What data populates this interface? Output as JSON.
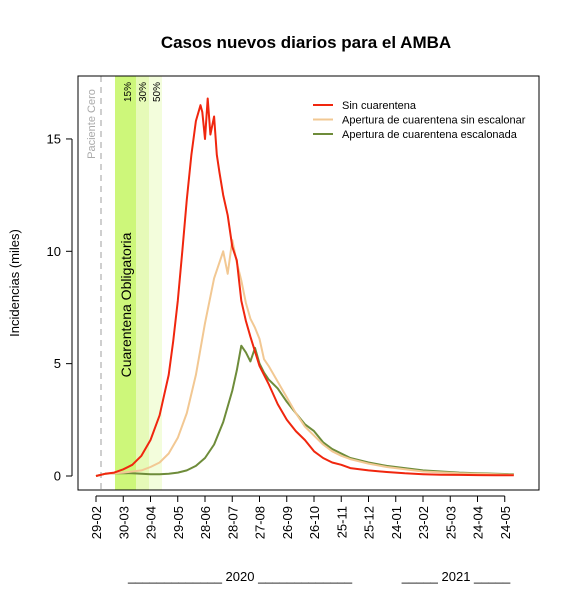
{
  "chart_data": {
    "type": "line",
    "title": "Casos nuevos diarios para el AMBA",
    "ylabel": "Incidencias (miles)",
    "xlabel": "",
    "ylim": [
      0,
      18
    ],
    "yticks": [
      0,
      5,
      10,
      15
    ],
    "xtick_labels": [
      "29-02",
      "30-03",
      "29-04",
      "29-05",
      "28-06",
      "28-07",
      "27-08",
      "26-09",
      "26-10",
      "25-11",
      "25-12",
      "24-01",
      "23-02",
      "25-03",
      "24-04",
      "24-05"
    ],
    "year_labels": [
      {
        "text": "_____________ 2020 _____________"
      },
      {
        "text": "_____ 2021 _____"
      }
    ],
    "annotations": {
      "paciente_cero": "Paciente Cero",
      "cuarentena": "Cuarentena Obligatoria",
      "phases": [
        "15%",
        "30%",
        "50%"
      ]
    },
    "phase_colors": [
      "#cdf77a",
      "#e6fab8",
      "#f3fddc"
    ],
    "series": [
      {
        "name": "Sin cuarentena",
        "color": "#f0260e",
        "x": [
          0,
          10,
          20,
          30,
          40,
          50,
          60,
          70,
          80,
          85,
          90,
          95,
          100,
          105,
          110,
          115,
          117,
          120,
          123,
          126,
          130,
          133,
          136,
          140,
          145,
          150,
          155,
          160,
          165,
          170,
          180,
          190,
          200,
          210,
          220,
          230,
          240,
          250,
          260,
          270,
          280,
          300,
          320,
          340,
          360,
          380,
          400,
          420,
          440,
          460
        ],
        "values": [
          0,
          0.1,
          0.15,
          0.3,
          0.5,
          0.9,
          1.6,
          2.7,
          4.5,
          6.0,
          7.8,
          10.0,
          12.3,
          14.3,
          15.8,
          16.5,
          16.2,
          15.0,
          16.8,
          15.2,
          16.0,
          14.3,
          13.5,
          12.5,
          11.6,
          10.2,
          9.6,
          7.8,
          6.9,
          6.2,
          4.9,
          4.1,
          3.2,
          2.5,
          2.0,
          1.6,
          1.1,
          0.8,
          0.6,
          0.5,
          0.35,
          0.25,
          0.18,
          0.12,
          0.08,
          0.06,
          0.05,
          0.04,
          0.03,
          0.03
        ]
      },
      {
        "name": "Apertura de cuarentena sin escalonar",
        "color": "#f2c893",
        "x": [
          0,
          10,
          20,
          30,
          40,
          50,
          60,
          70,
          80,
          90,
          100,
          110,
          120,
          130,
          140,
          145,
          150,
          155,
          160,
          165,
          170,
          175,
          180,
          185,
          190,
          200,
          210,
          220,
          230,
          240,
          250,
          260,
          270,
          280,
          300,
          320,
          340,
          360,
          380,
          400,
          420,
          440,
          460
        ],
        "values": [
          0,
          0.1,
          0.12,
          0.15,
          0.2,
          0.25,
          0.4,
          0.6,
          1.0,
          1.7,
          2.8,
          4.5,
          6.8,
          8.8,
          10.0,
          9.0,
          10.5,
          9.5,
          8.7,
          7.7,
          7.0,
          6.6,
          6.1,
          5.2,
          4.9,
          4.2,
          3.5,
          2.8,
          2.2,
          1.8,
          1.4,
          1.1,
          0.9,
          0.75,
          0.55,
          0.4,
          0.3,
          0.2,
          0.16,
          0.12,
          0.1,
          0.08,
          0.06
        ]
      },
      {
        "name": "Apertura de cuarentena escalonada",
        "color": "#6e8c3a",
        "x": [
          0,
          10,
          20,
          30,
          40,
          50,
          60,
          70,
          80,
          90,
          100,
          110,
          120,
          130,
          140,
          150,
          155,
          160,
          165,
          170,
          175,
          180,
          185,
          190,
          200,
          210,
          220,
          230,
          240,
          250,
          260,
          270,
          280,
          300,
          320,
          340,
          360,
          380,
          400,
          420,
          440,
          460
        ],
        "values": [
          0,
          0.1,
          0.12,
          0.13,
          0.12,
          0.1,
          0.08,
          0.08,
          0.1,
          0.15,
          0.25,
          0.45,
          0.8,
          1.4,
          2.4,
          3.8,
          4.7,
          5.8,
          5.5,
          5.1,
          5.7,
          5.0,
          4.6,
          4.3,
          3.9,
          3.3,
          2.8,
          2.3,
          2.0,
          1.5,
          1.2,
          1.0,
          0.8,
          0.6,
          0.45,
          0.35,
          0.25,
          0.2,
          0.15,
          0.12,
          0.1,
          0.08
        ]
      }
    ]
  }
}
